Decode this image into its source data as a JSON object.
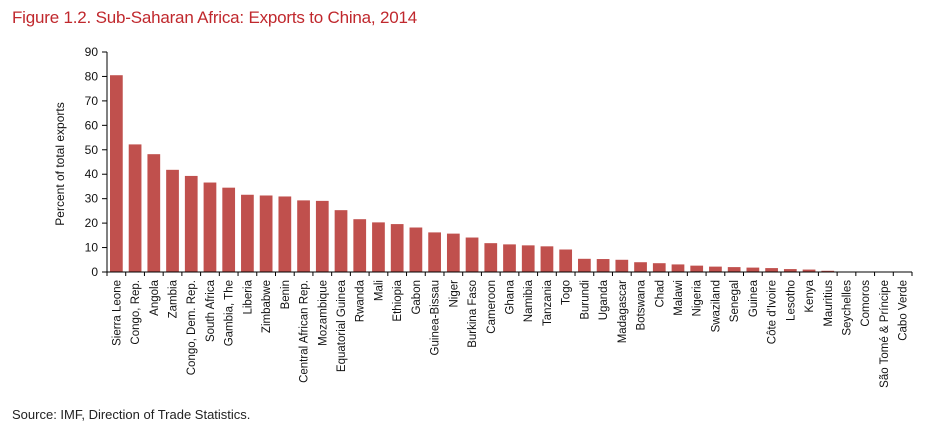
{
  "title": "Figure 1.2. Sub-Saharan Africa: Exports to China, 2014",
  "source": "Source: IMF, Direction of Trade Statistics.",
  "chart_data": {
    "type": "bar",
    "title": "Figure 1.2. Sub-Saharan Africa: Exports to China, 2014",
    "xlabel": "",
    "ylabel": "Percent of total exports",
    "ylim": [
      0,
      90
    ],
    "yticks": [
      0,
      10,
      20,
      30,
      40,
      50,
      60,
      70,
      80,
      90
    ],
    "bar_color": "#c0504d",
    "categories": [
      "Sierra Leone",
      "Congo, Rep.",
      "Angola",
      "Zambia",
      "Congo, Dem. Rep.",
      "South Africa",
      "Gambia, The",
      "Liberia",
      "Zimbabwe",
      "Benin",
      "Central African Rep.",
      "Mozambique",
      "Equatorial Guinea",
      "Rwanda",
      "Mali",
      "Ethiopia",
      "Gabon",
      "Guinea-Bissau",
      "Niger",
      "Burkina Faso",
      "Cameroon",
      "Ghana",
      "Namibia",
      "Tanzania",
      "Togo",
      "Burundi",
      "Uganda",
      "Madagascar",
      "Botswana",
      "Chad",
      "Malawi",
      "Nigeria",
      "Swaziland",
      "Senegal",
      "Guinea",
      "Côte d'Ivoire",
      "Lesotho",
      "Kenya",
      "Mauritius",
      "Seychelles",
      "Comoros",
      "São Tomé & Príncipe",
      "Cabo Verde"
    ],
    "values": [
      80.5,
      52.2,
      48.2,
      41.8,
      39.3,
      36.6,
      34.5,
      31.6,
      31.3,
      30.9,
      29.3,
      29.1,
      25.3,
      21.6,
      20.3,
      19.6,
      18.2,
      16.2,
      15.7,
      14.1,
      11.8,
      11.3,
      10.9,
      10.5,
      9.2,
      5.4,
      5.3,
      5.0,
      4.0,
      3.6,
      3.1,
      2.6,
      2.2,
      2.0,
      1.8,
      1.6,
      1.2,
      1.0,
      0.5,
      0.0,
      0.0,
      0.0,
      0.0
    ],
    "grid": false,
    "legend": "none"
  }
}
